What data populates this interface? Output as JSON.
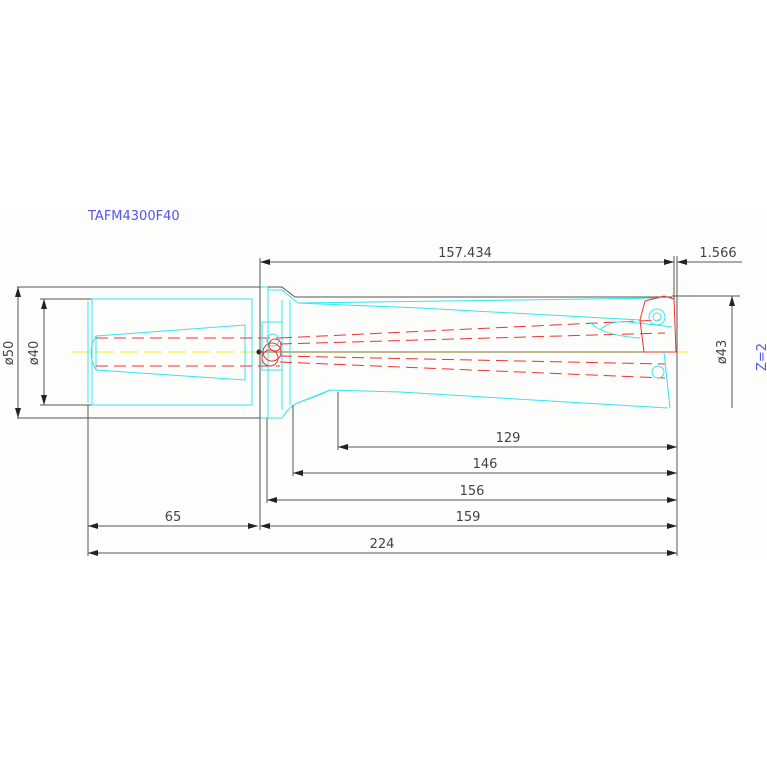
{
  "drawing": {
    "title": "TAFM4300F40",
    "teeth_label": "Z=2",
    "colors": {
      "outline": "#555555",
      "body": "#33e6f0",
      "hidden": "#ee3333",
      "centerline": "#eeee22",
      "title": "#5555ee"
    },
    "dimensions": {
      "shank_diameter": "ø50",
      "shank_inner_diameter": "ø40",
      "cutting_diameter": "ø43",
      "flute_length_to_insert": "157.434",
      "insert_offset": "1.566",
      "len_129": "129",
      "len_146": "146",
      "len_156": "156",
      "len_159": "159",
      "shank_length": "65",
      "overall_length": "224"
    }
  }
}
